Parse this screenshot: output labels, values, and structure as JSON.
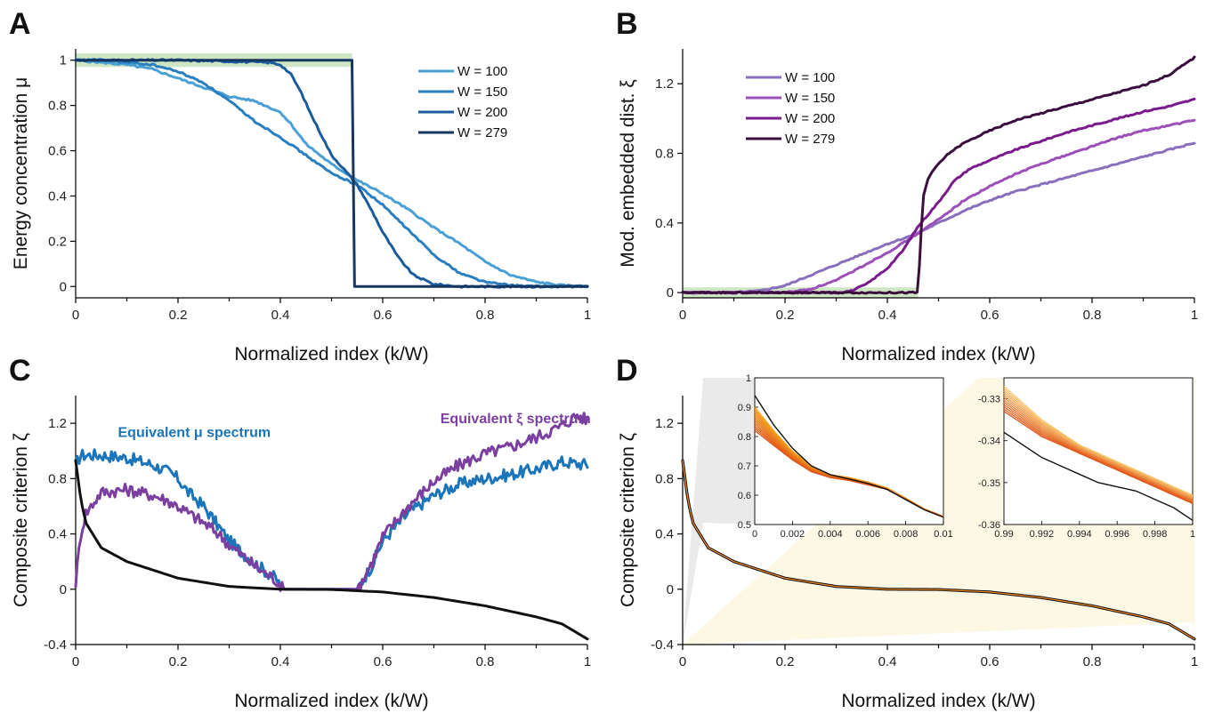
{
  "panels": {
    "A": {
      "letter": "A"
    },
    "B": {
      "letter": "B"
    },
    "C": {
      "letter": "C"
    },
    "D": {
      "letter": "D"
    }
  },
  "chart_data": [
    {
      "id": "A",
      "type": "line",
      "title": "",
      "xlabel": "Normalized index (k/W)",
      "ylabel": "Energy concentration μ",
      "xlim": [
        0,
        1
      ],
      "ylim": [
        -0.05,
        1.05
      ],
      "xticks": [
        "0",
        "0.2",
        "0.4",
        "0.6",
        "0.8",
        "1"
      ],
      "yticks": [
        "0",
        "0.2",
        "0.4",
        "0.6",
        "0.8",
        "1"
      ],
      "highlight_band": {
        "x": [
          0,
          0.54
        ],
        "y": [
          0.97,
          1.03
        ],
        "color": "#cfe6c4"
      },
      "legend_position": "top-right",
      "series": [
        {
          "name": "W = 100",
          "color": "#4a9fd4",
          "x": [
            0,
            0.05,
            0.1,
            0.15,
            0.2,
            0.25,
            0.3,
            0.35,
            0.4,
            0.42,
            0.45,
            0.5,
            0.55,
            0.6,
            0.65,
            0.7,
            0.75,
            0.8,
            0.85,
            0.9,
            0.95,
            1
          ],
          "y": [
            1.0,
            0.99,
            0.98,
            0.96,
            0.92,
            0.88,
            0.84,
            0.82,
            0.77,
            0.72,
            0.63,
            0.54,
            0.47,
            0.41,
            0.34,
            0.26,
            0.19,
            0.11,
            0.05,
            0.02,
            0.005,
            0
          ]
        },
        {
          "name": "W = 150",
          "color": "#2a7fc0",
          "x": [
            0,
            0.05,
            0.1,
            0.15,
            0.2,
            0.25,
            0.3,
            0.35,
            0.4,
            0.45,
            0.5,
            0.55,
            0.6,
            0.65,
            0.7,
            0.75,
            0.8,
            0.85,
            0.9,
            1
          ],
          "y": [
            1.0,
            1.0,
            0.99,
            0.98,
            0.95,
            0.9,
            0.82,
            0.73,
            0.66,
            0.58,
            0.5,
            0.45,
            0.36,
            0.25,
            0.14,
            0.06,
            0.02,
            0.005,
            0,
            0
          ]
        },
        {
          "name": "W = 200",
          "color": "#1a5c9c",
          "x": [
            0,
            0.1,
            0.2,
            0.3,
            0.38,
            0.4,
            0.42,
            0.44,
            0.46,
            0.48,
            0.5,
            0.52,
            0.55,
            0.58,
            0.6,
            0.63,
            0.66,
            0.7,
            0.75,
            1
          ],
          "y": [
            1.0,
            1.0,
            1.0,
            0.995,
            0.99,
            0.98,
            0.94,
            0.86,
            0.76,
            0.67,
            0.58,
            0.53,
            0.45,
            0.33,
            0.24,
            0.13,
            0.05,
            0.01,
            0,
            0
          ]
        },
        {
          "name": "W = 279",
          "color": "#16365f",
          "x": [
            0,
            0.54,
            0.545,
            1
          ],
          "y": [
            1.0,
            1.0,
            0,
            0
          ]
        }
      ]
    },
    {
      "id": "B",
      "type": "line",
      "title": "",
      "xlabel": "Normalized index (k/W)",
      "ylabel": "Mod. embedded dist. ξ",
      "xlim": [
        0,
        1
      ],
      "ylim": [
        -0.03,
        1.4
      ],
      "xticks": [
        "0",
        "0.2",
        "0.4",
        "0.6",
        "0.8",
        "1"
      ],
      "yticks": [
        "0",
        "0.4",
        "0.8",
        "1.2"
      ],
      "highlight_band": {
        "x": [
          0,
          0.46
        ],
        "y": [
          -0.03,
          0.03
        ],
        "color": "#cfe6c4"
      },
      "legend_position": "top-left",
      "series": [
        {
          "name": "W = 100",
          "color": "#8a6fbd",
          "x": [
            0,
            0.1,
            0.15,
            0.2,
            0.25,
            0.3,
            0.35,
            0.4,
            0.45,
            0.5,
            0.55,
            0.6,
            0.65,
            0.7,
            0.75,
            0.8,
            0.85,
            0.9,
            0.95,
            1
          ],
          "y": [
            0,
            0,
            0.01,
            0.04,
            0.1,
            0.16,
            0.22,
            0.28,
            0.33,
            0.4,
            0.47,
            0.53,
            0.58,
            0.62,
            0.66,
            0.7,
            0.74,
            0.78,
            0.82,
            0.86
          ]
        },
        {
          "name": "W = 150",
          "color": "#9b4fb8",
          "x": [
            0,
            0.2,
            0.25,
            0.3,
            0.35,
            0.4,
            0.45,
            0.5,
            0.55,
            0.6,
            0.65,
            0.7,
            0.75,
            0.8,
            0.85,
            0.9,
            0.95,
            1
          ],
          "y": [
            0,
            0,
            0.02,
            0.07,
            0.15,
            0.23,
            0.32,
            0.42,
            0.53,
            0.61,
            0.68,
            0.74,
            0.79,
            0.84,
            0.89,
            0.93,
            0.96,
            0.99
          ]
        },
        {
          "name": "W = 200",
          "color": "#7a1b8c",
          "x": [
            0,
            0.3,
            0.33,
            0.36,
            0.4,
            0.43,
            0.46,
            0.5,
            0.53,
            0.56,
            0.6,
            0.65,
            0.7,
            0.75,
            0.8,
            0.85,
            0.9,
            0.95,
            1
          ],
          "y": [
            0,
            0,
            0.01,
            0.05,
            0.14,
            0.24,
            0.38,
            0.52,
            0.64,
            0.71,
            0.76,
            0.82,
            0.87,
            0.92,
            0.96,
            1.0,
            1.04,
            1.07,
            1.11
          ]
        },
        {
          "name": "W = 279",
          "color": "#3a0f3e",
          "x": [
            0,
            0.46,
            0.465,
            0.47,
            0.48,
            0.5,
            0.52,
            0.55,
            0.6,
            0.65,
            0.7,
            0.75,
            0.8,
            0.85,
            0.9,
            0.95,
            1
          ],
          "y": [
            0,
            0,
            0.3,
            0.55,
            0.66,
            0.74,
            0.8,
            0.86,
            0.93,
            0.99,
            1.03,
            1.07,
            1.11,
            1.15,
            1.19,
            1.25,
            1.35
          ]
        }
      ]
    },
    {
      "id": "C",
      "type": "line",
      "title": "",
      "xlabel": "Normalized index (k/W)",
      "ylabel": "Composite criterion ζ",
      "xlim": [
        0,
        1
      ],
      "ylim": [
        -0.4,
        1.4
      ],
      "xticks": [
        "0",
        "0.2",
        "0.4",
        "0.6",
        "0.8",
        "1"
      ],
      "yticks": [
        "-0.4",
        "0",
        "0.4",
        "0.8",
        "1.2"
      ],
      "annotations": [
        {
          "text": "Equivalent μ spectrum",
          "color": "#1b75bb",
          "x": 0.1,
          "y": 1.1
        },
        {
          "text": "Equivalent ξ spectrum",
          "color": "#7b3fa0",
          "x": 0.73,
          "y": 1.2
        }
      ],
      "series": [
        {
          "name": "",
          "color": "#1b75bb",
          "noisy": true,
          "x": [
            0,
            0.01,
            0.05,
            0.1,
            0.15,
            0.18,
            0.2,
            0.22,
            0.25,
            0.28,
            0.3,
            0.33,
            0.36,
            0.39,
            0.4,
            0.405,
            0.55,
            0.555,
            0.58,
            0.6,
            0.65,
            0.7,
            0.75,
            0.8,
            0.85,
            0.9,
            0.95,
            1
          ],
          "y": [
            0.9,
            0.97,
            0.97,
            0.95,
            0.9,
            0.85,
            0.8,
            0.7,
            0.6,
            0.45,
            0.35,
            0.25,
            0.16,
            0.08,
            0.03,
            0,
            0,
            0.03,
            0.18,
            0.35,
            0.55,
            0.68,
            0.76,
            0.8,
            0.83,
            0.87,
            0.92,
            0.9
          ]
        },
        {
          "name": "",
          "color": "#7b3fa0",
          "noisy": true,
          "x": [
            0,
            0.01,
            0.02,
            0.05,
            0.1,
            0.15,
            0.18,
            0.2,
            0.22,
            0.25,
            0.28,
            0.3,
            0.33,
            0.36,
            0.39,
            0.4,
            0.405,
            0.55,
            0.555,
            0.58,
            0.6,
            0.65,
            0.7,
            0.75,
            0.8,
            0.85,
            0.9,
            0.95,
            0.98,
            1
          ],
          "y": [
            0.05,
            0.4,
            0.55,
            0.7,
            0.72,
            0.68,
            0.64,
            0.6,
            0.55,
            0.48,
            0.4,
            0.32,
            0.23,
            0.14,
            0.07,
            0.03,
            0,
            0,
            0.03,
            0.2,
            0.38,
            0.6,
            0.78,
            0.9,
            0.98,
            1.03,
            1.1,
            1.18,
            1.26,
            1.22
          ]
        },
        {
          "name": "",
          "color": "#111111",
          "x": [
            0,
            0.01,
            0.02,
            0.05,
            0.1,
            0.15,
            0.2,
            0.3,
            0.4,
            0.5,
            0.6,
            0.7,
            0.8,
            0.9,
            0.95,
            1
          ],
          "y": [
            0.93,
            0.65,
            0.48,
            0.3,
            0.2,
            0.14,
            0.08,
            0.02,
            0,
            -0.002,
            -0.02,
            -0.06,
            -0.12,
            -0.2,
            -0.25,
            -0.36
          ]
        }
      ]
    },
    {
      "id": "D",
      "type": "line",
      "title": "",
      "xlabel": "Normalized index (k/W)",
      "ylabel": "Composite criterion ζ",
      "xlim": [
        0,
        1
      ],
      "ylim": [
        -0.4,
        1.4
      ],
      "xticks": [
        "0",
        "0.2",
        "0.4",
        "0.6",
        "0.8",
        "1"
      ],
      "yticks": [
        "-0.4",
        "0",
        "0.4",
        "0.8",
        "1.2"
      ],
      "series": [
        {
          "name": "",
          "color": "#111111",
          "width": 3.2,
          "x": [
            0,
            0.01,
            0.02,
            0.05,
            0.1,
            0.15,
            0.2,
            0.3,
            0.4,
            0.5,
            0.6,
            0.7,
            0.8,
            0.9,
            0.95,
            1
          ],
          "y": [
            0.93,
            0.65,
            0.48,
            0.3,
            0.2,
            0.14,
            0.08,
            0.02,
            0,
            -0.002,
            -0.02,
            -0.06,
            -0.12,
            -0.2,
            -0.25,
            -0.36
          ]
        },
        {
          "name": "",
          "color": "#f08a24",
          "width": 1.2,
          "x": [
            0,
            0.01,
            0.02,
            0.05,
            0.1,
            0.15,
            0.2,
            0.3,
            0.4,
            0.5,
            0.6,
            0.7,
            0.8,
            0.9,
            0.95,
            1
          ],
          "y": [
            0.93,
            0.65,
            0.48,
            0.3,
            0.2,
            0.14,
            0.08,
            0.02,
            0,
            -0.002,
            -0.02,
            -0.06,
            -0.12,
            -0.2,
            -0.25,
            -0.36
          ]
        }
      ],
      "insets": [
        {
          "id": "D-inset-left",
          "xlim": [
            0,
            0.01
          ],
          "ylim": [
            0.5,
            1
          ],
          "xticks": [
            "0",
            "0.002",
            "0.004",
            "0.006",
            "0.008",
            "0.01"
          ],
          "yticks": [
            "0.5",
            "0.6",
            "0.7",
            "0.8",
            "0.9",
            "1"
          ],
          "zoom_fill": "#d9d9d9",
          "black": {
            "x": [
              0,
              0.001,
              0.002,
              0.003,
              0.004,
              0.005,
              0.006,
              0.007,
              0.008,
              0.009,
              0.01
            ],
            "y": [
              0.94,
              0.84,
              0.76,
              0.7,
              0.67,
              0.655,
              0.64,
              0.62,
              0.585,
              0.55,
              0.525
            ]
          },
          "orange_family": {
            "count": 12,
            "colors": [
              "#f4a21a",
              "#e0561a"
            ],
            "x": [
              0,
              0.001,
              0.002,
              0.003,
              0.004,
              0.005,
              0.006,
              0.007,
              0.008,
              0.009,
              0.01
            ],
            "y_low": [
              0.82,
              0.77,
              0.72,
              0.68,
              0.66,
              0.65,
              0.635,
              0.62,
              0.585,
              0.55,
              0.525
            ],
            "y_high": [
              0.9,
              0.82,
              0.75,
              0.7,
              0.67,
              0.66,
              0.645,
              0.625,
              0.59,
              0.553,
              0.528
            ]
          }
        },
        {
          "id": "D-inset-right",
          "xlim": [
            0.99,
            1
          ],
          "ylim": [
            -0.36,
            -0.325
          ],
          "xticks": [
            "0.99",
            "0.992",
            "0.994",
            "0.996",
            "0.998",
            "1"
          ],
          "yticks": [
            "-0.36",
            "-0.35",
            "-0.34",
            "-0.33"
          ],
          "zoom_fill": "#fbf5d9",
          "black": {
            "x": [
              0.99,
              0.991,
              0.992,
              0.993,
              0.994,
              0.995,
              0.996,
              0.997,
              0.998,
              0.999,
              1
            ],
            "y": [
              -0.338,
              -0.341,
              -0.344,
              -0.346,
              -0.348,
              -0.35,
              -0.351,
              -0.352,
              -0.354,
              -0.356,
              -0.359
            ]
          },
          "orange_family": {
            "count": 12,
            "colors": [
              "#f8c870",
              "#e0561a"
            ],
            "x": [
              0.99,
              0.991,
              0.992,
              0.993,
              0.994,
              0.995,
              0.996,
              0.997,
              0.998,
              0.999,
              1
            ],
            "y_low": [
              -0.333,
              -0.336,
              -0.339,
              -0.341,
              -0.343,
              -0.345,
              -0.347,
              -0.349,
              -0.351,
              -0.353,
              -0.355
            ],
            "y_high": [
              -0.327,
              -0.331,
              -0.335,
              -0.338,
              -0.341,
              -0.343,
              -0.345,
              -0.347,
              -0.349,
              -0.351,
              -0.353
            ]
          }
        }
      ]
    }
  ]
}
